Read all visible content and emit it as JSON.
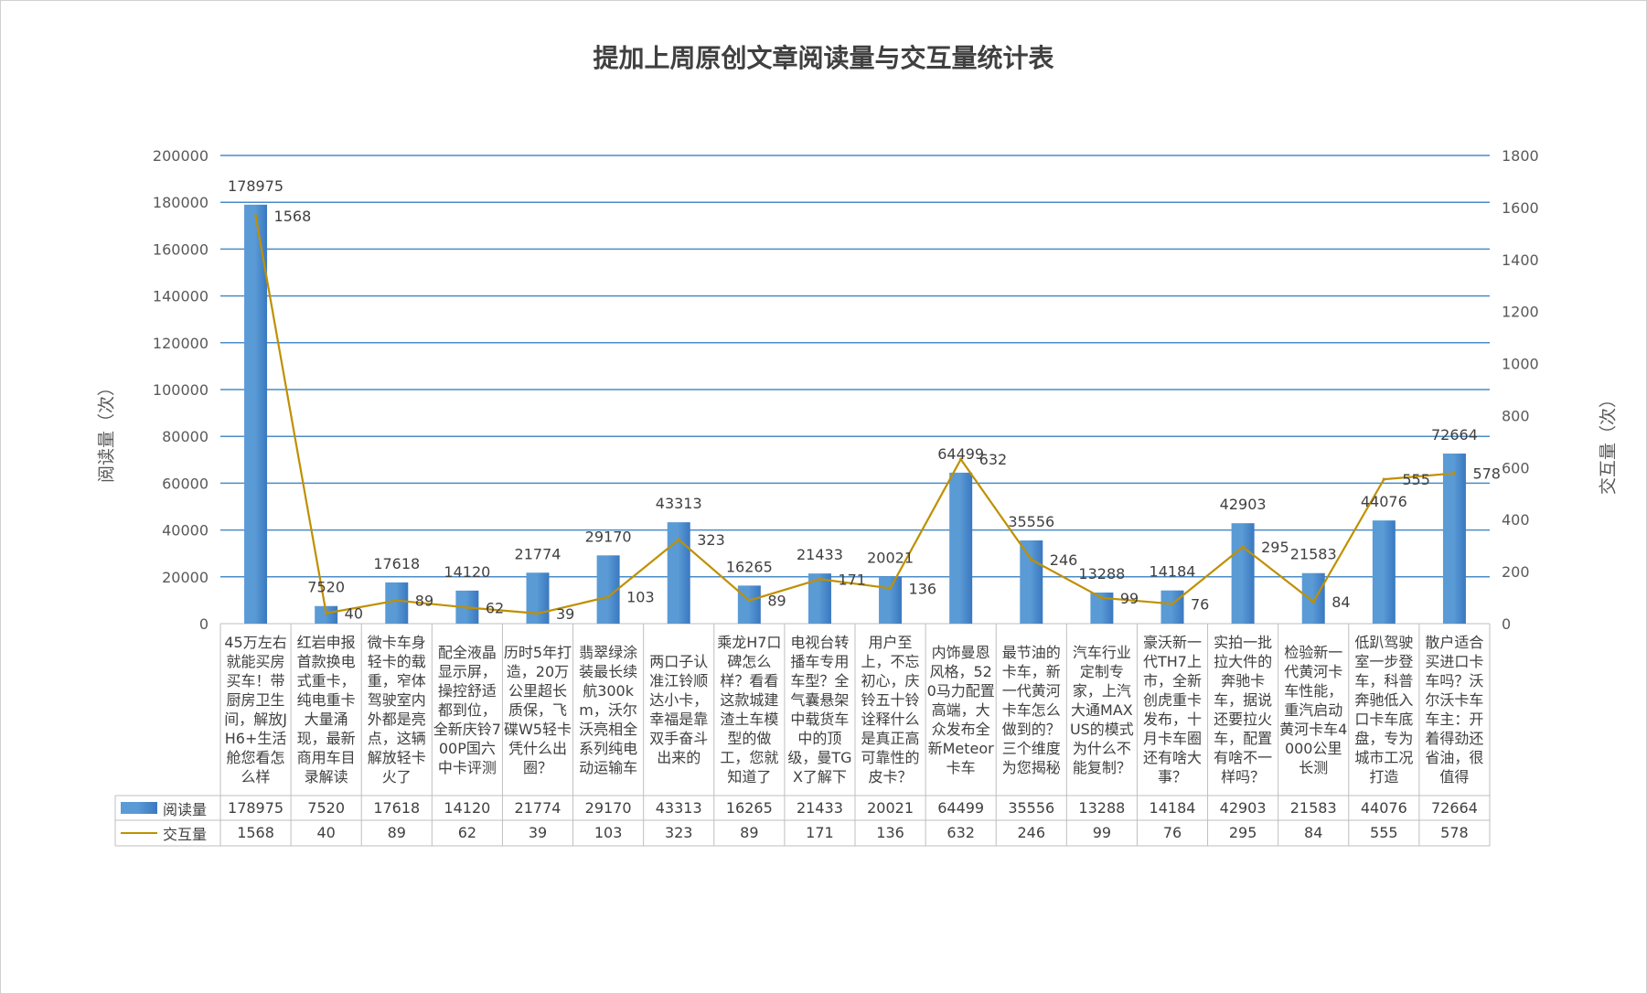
{
  "chart_data": {
    "type": "bar",
    "title": "提加上周原创文章阅读量与交互量统计表",
    "ylabel": "阅读量（次）",
    "y2label": "交互量（次）",
    "ylim": [
      0,
      200000
    ],
    "y2lim": [
      0,
      1800
    ],
    "y_ticks": [
      0,
      20000,
      40000,
      60000,
      80000,
      100000,
      120000,
      140000,
      160000,
      180000,
      200000
    ],
    "y2_ticks": [
      0,
      200,
      400,
      600,
      800,
      1000,
      1200,
      1400,
      1600,
      1800
    ],
    "grid": true,
    "legend": "bottom",
    "colors": {
      "bar": "#5B9BD5",
      "bar_edge": "#3A78C0",
      "line": "#BF9000",
      "grid": "#4A8CC9",
      "table_border": "#BFBFBF"
    },
    "categories": [
      "45万左右就能买房买车！带厨房卫生间，解放JH6+生活舱您看怎么样",
      "红岩申报首款换电式重卡，纯电重卡大量涌现，最新商用车目录解读",
      "微卡车身轻卡的载重，窄体驾驶室内外都是亮点，这辆解放轻卡火了",
      "配全液晶显示屏，操控舒适都到位，全新庆铃700P国六中卡评测",
      "历时5年打造，20万公里超长质保，飞碟W5轻卡凭什么出圈？",
      "翡翠绿涂装最长续航300km，沃尔沃亮相全系列纯电动运输车",
      "两口子认准江铃顺达小卡，幸福是靠双手奋斗出来的",
      "乘龙H7口碑怎么样？看看这款城建渣土车模型的做工，您就知道了",
      "电视台转播车专用车型？全气囊悬架中载货车中的顶级，曼TGX了解下",
      "用户至上，不忘初心，庆铃五十铃诠释什么是真正高可靠性的皮卡？",
      "内饰曼恩风格，520马力配置高端，大众发布全新Meteor卡车",
      "最节油的卡车，新一代黄河卡车怎么做到的？三个维度为您揭秘",
      "汽车行业定制专家，上汽大通MAXUS的模式为什么不能复制？",
      "豪沃新一代TH7上市，全新创虎重卡发布，十月卡车圈还有啥大事？",
      "实拍一批拉大件的奔驰卡车，据说还要拉火车，配置有啥不一样吗？",
      "检验新一代黄河卡车性能，重汽启动黄河卡车4000公里长测",
      "低趴驾驶室一步登车，科普奔驰低入口卡车底盘，专为城市工况打造",
      "散户适合买进口卡车吗？沃尔沃卡车车主：开着得劲还省油，很值得"
    ],
    "series": [
      {
        "name": "阅读量",
        "type": "bar",
        "axis": "primary",
        "values": [
          178975,
          7520,
          17618,
          14120,
          21774,
          29170,
          43313,
          16265,
          21433,
          20021,
          64499,
          35556,
          13288,
          14184,
          42903,
          21583,
          44076,
          72664
        ]
      },
      {
        "name": "交互量",
        "type": "line",
        "axis": "secondary",
        "values": [
          1568,
          40,
          89,
          62,
          39,
          103,
          323,
          89,
          171,
          136,
          632,
          246,
          99,
          76,
          295,
          84,
          555,
          578
        ]
      }
    ]
  }
}
